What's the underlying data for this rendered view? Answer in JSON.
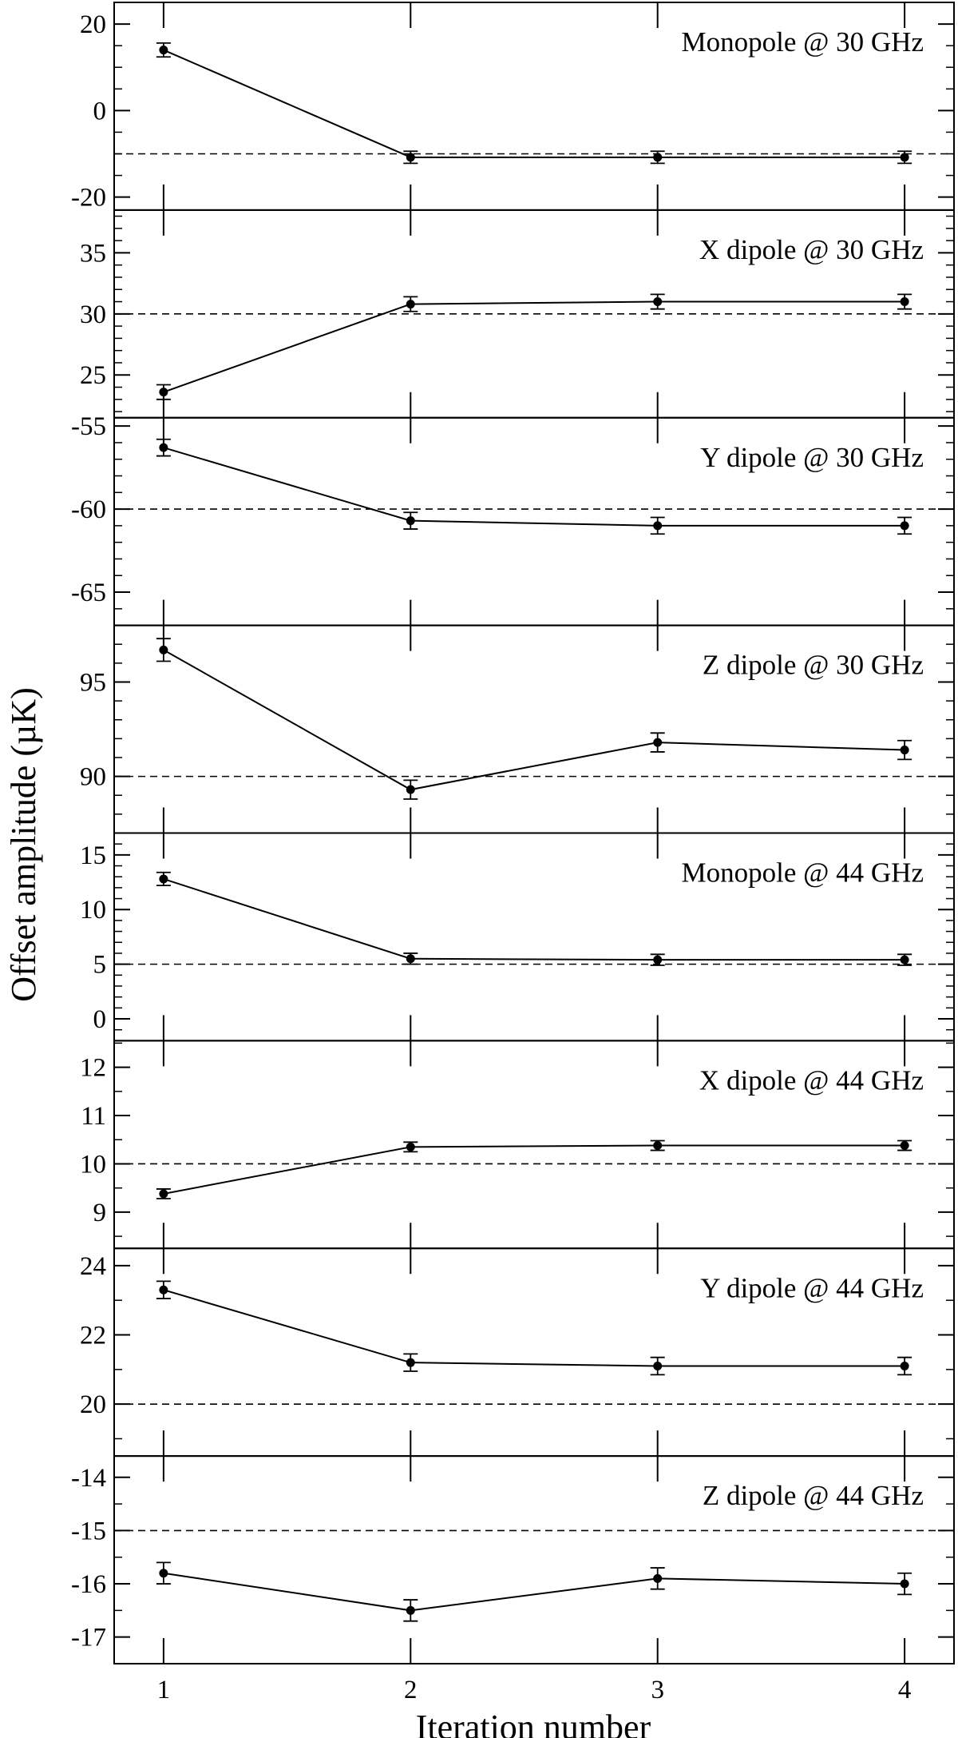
{
  "chart_data": {
    "type": "line",
    "xlabel": "Iteration number",
    "ylabel": "Offset amplitude (µK)",
    "x": [
      1,
      2,
      3,
      4
    ],
    "xlim": [
      0.8,
      4.2
    ],
    "x_ticks": [
      "1",
      "2",
      "3",
      "4"
    ],
    "panels": [
      {
        "label": "Monopole @ 30 GHz",
        "ylim": [
          -23,
          25
        ],
        "y_ticks": [
          -20,
          0,
          20
        ],
        "y_tick_labels": [
          "-20",
          "0",
          "20"
        ],
        "y_minor_step": 5,
        "reference": -10,
        "values": [
          14,
          -10.8,
          -10.8,
          -10.8
        ],
        "errors": [
          1.6,
          1.4,
          1.4,
          1.4
        ]
      },
      {
        "label": "X dipole @ 30 GHz",
        "ylim": [
          21.5,
          38.5
        ],
        "y_ticks": [
          25,
          30,
          35
        ],
        "y_tick_labels": [
          "25",
          "30",
          "35"
        ],
        "y_minor_step": 1,
        "reference": 30,
        "values": [
          23.6,
          30.8,
          31.0,
          31.0
        ],
        "errors": [
          0.6,
          0.6,
          0.6,
          0.6
        ]
      },
      {
        "label": "Y dipole @ 30 GHz",
        "ylim": [
          -67,
          -54.5
        ],
        "y_ticks": [
          -65,
          -60,
          -55
        ],
        "y_tick_labels": [
          "-65",
          "-60",
          "-55"
        ],
        "y_minor_step": 1,
        "reference": -60,
        "values": [
          -56.3,
          -60.7,
          -61.0,
          -61.0
        ],
        "errors": [
          0.5,
          0.5,
          0.5,
          0.5
        ]
      },
      {
        "label": "Z dipole @ 30 GHz",
        "ylim": [
          87,
          98
        ],
        "y_ticks": [
          90,
          95
        ],
        "y_tick_labels": [
          "90",
          "95"
        ],
        "y_minor_step": 1,
        "reference": 90,
        "values": [
          96.7,
          89.3,
          91.8,
          91.4
        ],
        "errors": [
          0.6,
          0.5,
          0.5,
          0.5
        ]
      },
      {
        "label": "Monopole @ 44 GHz",
        "ylim": [
          -2,
          17
        ],
        "y_ticks": [
          0,
          5,
          10,
          15
        ],
        "y_tick_labels": [
          "0",
          "5",
          "10",
          "15"
        ],
        "y_minor_step": 1,
        "reference": 5,
        "values": [
          12.8,
          5.5,
          5.4,
          5.4
        ],
        "errors": [
          0.6,
          0.5,
          0.5,
          0.5
        ]
      },
      {
        "label": "X dipole @ 44 GHz",
        "ylim": [
          8.25,
          12.55
        ],
        "y_ticks": [
          9,
          10,
          11,
          12
        ],
        "y_tick_labels": [
          "9",
          "10",
          "11",
          "12"
        ],
        "y_minor_step": 0.5,
        "reference": 10,
        "values": [
          9.38,
          10.35,
          10.38,
          10.38
        ],
        "errors": [
          0.1,
          0.1,
          0.1,
          0.1
        ]
      },
      {
        "label": "Y dipole @ 44 GHz",
        "ylim": [
          18.5,
          24.5
        ],
        "y_ticks": [
          20,
          22,
          24
        ],
        "y_tick_labels": [
          "20",
          "22",
          "24"
        ],
        "y_minor_step": 1,
        "reference": 20,
        "values": [
          23.3,
          21.2,
          21.1,
          21.1
        ],
        "errors": [
          0.25,
          0.25,
          0.25,
          0.25
        ]
      },
      {
        "label": "Z dipole @ 44 GHz",
        "ylim": [
          -17.5,
          -13.6
        ],
        "y_ticks": [
          -17,
          -16,
          -15,
          -14
        ],
        "y_tick_labels": [
          "-17",
          "-16",
          "-15",
          "-14"
        ],
        "y_minor_step": 0.5,
        "reference": -15,
        "values": [
          -15.8,
          -16.5,
          -15.9,
          -16.0
        ],
        "errors": [
          0.2,
          0.2,
          0.2,
          0.2
        ]
      }
    ]
  }
}
